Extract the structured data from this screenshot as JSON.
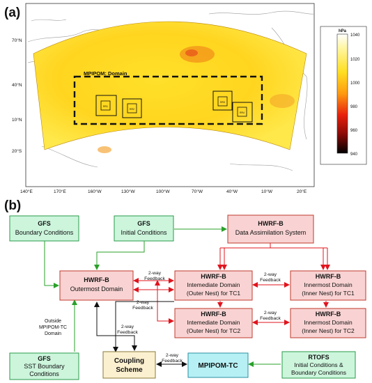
{
  "panel_a": {
    "label": "(a)",
    "domain_label": "MPIPOM: Domain",
    "storm_labels": [
      "RR1",
      "RR2",
      "RR3",
      "RR4"
    ],
    "lat_labels": [
      "70°N",
      "40°N",
      "10°N",
      "20°S"
    ],
    "lon_labels": [
      "140°E",
      "170°E",
      "160°W",
      "130°W",
      "100°W",
      "70°W",
      "40°W",
      "10°W",
      "20°E"
    ],
    "colorbar": {
      "unit": "hPa",
      "ticks": [
        "1040",
        "1020",
        "1000",
        "980",
        "960",
        "940"
      ]
    }
  },
  "panel_b": {
    "label": "(b)",
    "boxes": {
      "gfs_bc": {
        "title": "GFS",
        "line1": "Boundary Conditions",
        "line2": ""
      },
      "gfs_ic": {
        "title": "GFS",
        "line1": "Initial Conditions",
        "line2": ""
      },
      "hwrf_da": {
        "title": "HWRF-B",
        "line1": "Data Assimilation System",
        "line2": ""
      },
      "hwrf_outer": {
        "title": "HWRF-B",
        "line1": "Outermost Domain",
        "line2": ""
      },
      "inter_tc1": {
        "title": "HWRF-B",
        "line1": "Intemediate Domain",
        "line2": "(Outer Nest) for TC1"
      },
      "inner_tc1": {
        "title": "HWRF-B",
        "line1": "Innermost Domain",
        "line2": "(Inner Nest) for TC1"
      },
      "inter_tc2": {
        "title": "HWRF-B",
        "line1": "Intemediate Domain",
        "line2": "(Outer Nest) for TC2"
      },
      "inner_tc2": {
        "title": "HWRF-B",
        "line1": "Innermost Domain",
        "line2": "(Inner Nest) for TC2"
      },
      "gfs_sst": {
        "title": "GFS",
        "line1": "SST Boundary",
        "line2": "Conditions"
      },
      "coupling": {
        "title": "Coupling",
        "line1": "Scheme",
        "line2": ""
      },
      "mpipom": {
        "title": "MPIPOM-TC",
        "line1": "",
        "line2": ""
      },
      "rtofs": {
        "title": "RTOFS",
        "line1": "Initial Conditions &",
        "line2": "Boundary Conditions"
      }
    },
    "feedback": {
      "line1": "2-way",
      "line2": "Feedback"
    },
    "outside": {
      "line1": "Outside",
      "line2": "MPIPOM-TC",
      "line3": "Domain"
    }
  },
  "colors": {
    "green_fill": "#ccf5dc",
    "green_stroke": "#2a9a4a",
    "pink_fill": "#f9d3d3",
    "pink_stroke": "#c0392b",
    "tan_fill": "#fbf0cf",
    "cyan_fill": "#b6f0f4",
    "arrow_green": "#2aa02a",
    "arrow_red": "#e0141e",
    "arrow_black": "#111111"
  }
}
